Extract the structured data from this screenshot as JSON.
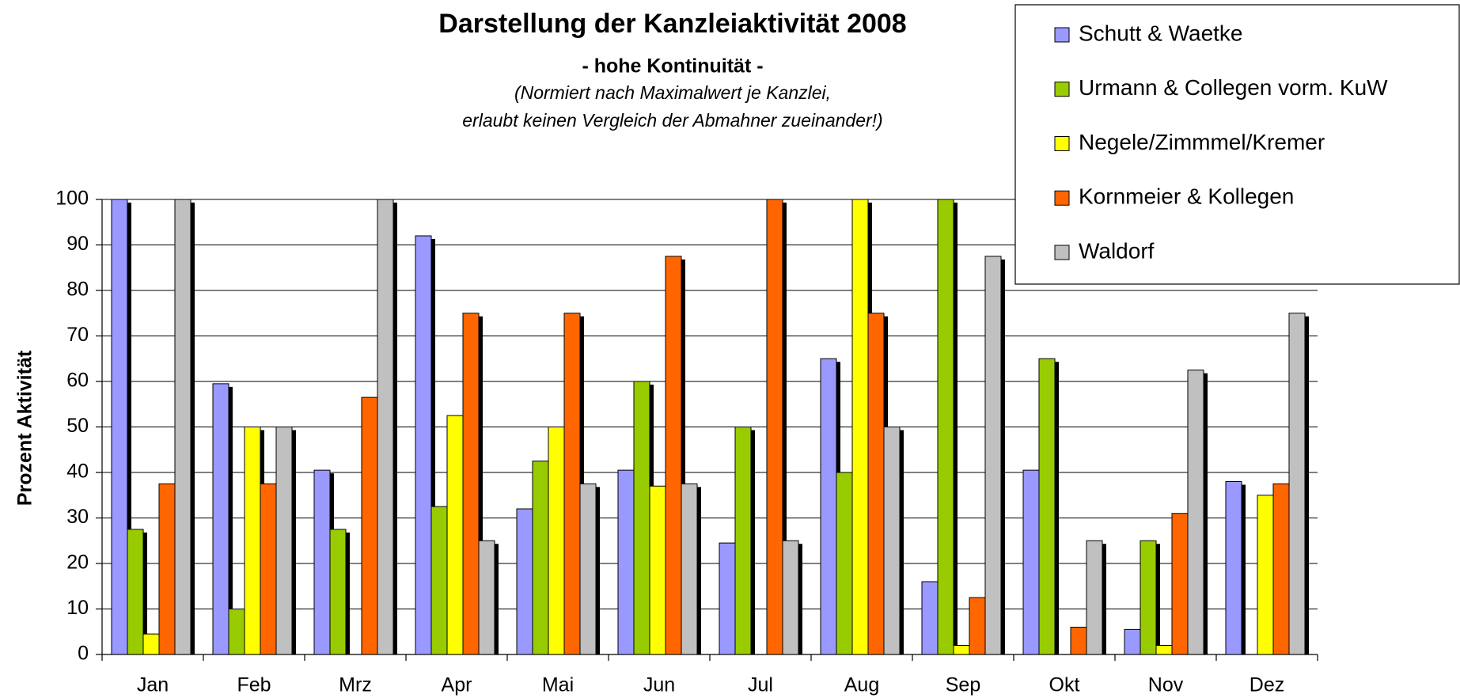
{
  "chart_data": {
    "type": "bar",
    "title": "Darstellung der Kanzleiaktivität 2008",
    "subtitle": "- hohe Kontinuität -",
    "notes": [
      "(Normiert nach Maximalwert je Kanzlei,",
      "erlaubt keinen Vergleich der Abmahner zueinander!)"
    ],
    "y_label": "Prozent Aktivität",
    "categories": [
      "Jan",
      "Feb",
      "Mrz",
      "Apr",
      "Mai",
      "Jun",
      "Jul",
      "Aug",
      "Sep",
      "Okt",
      "Nov",
      "Dez"
    ],
    "series": [
      {
        "name": "Schutt & Waetke",
        "color": "#9999ff",
        "values": [
          100,
          59.5,
          40.5,
          92,
          32,
          40.5,
          24.5,
          65,
          16,
          40.5,
          5.5,
          38
        ]
      },
      {
        "name": "Urmann & Collegen vorm. KuW",
        "color": "#99cc00",
        "values": [
          27.5,
          10,
          27.5,
          32.5,
          42.5,
          60,
          50,
          40,
          100,
          65,
          25,
          null
        ]
      },
      {
        "name": "Negele/Zimmmel/Kremer",
        "color": "#ffff00",
        "values": [
          4.5,
          50,
          null,
          52.5,
          50,
          37,
          null,
          100,
          2,
          null,
          2,
          35
        ]
      },
      {
        "name": "Kornmeier & Kollegen",
        "color": "#ff6600",
        "values": [
          37.5,
          37.5,
          56.5,
          75,
          75,
          87.5,
          100,
          75,
          12.5,
          6,
          31,
          37.5
        ]
      },
      {
        "name": "Waldorf",
        "color": "#c0c0c0",
        "values": [
          100,
          50,
          100,
          25,
          37.5,
          37.5,
          25,
          50,
          87.5,
          25,
          62.5,
          75
        ]
      }
    ],
    "ylim": [
      0,
      100
    ],
    "yticks": [
      0,
      10,
      20,
      30,
      40,
      50,
      60,
      70,
      80,
      90,
      100
    ],
    "grid": true,
    "legend": "top-right"
  }
}
